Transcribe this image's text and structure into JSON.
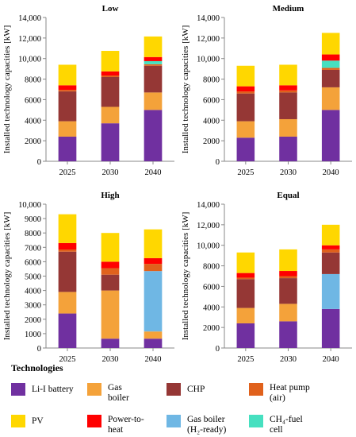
{
  "figure": {
    "ylabel": "Installed technology capacities [kW]",
    "categories": [
      "2025",
      "2030",
      "2040"
    ]
  },
  "legend": {
    "title": "Technologies",
    "items": [
      {
        "label": "Li-I battery",
        "color": "#7030A0"
      },
      {
        "label": "Gas\nboiler",
        "color": "#F4A23A"
      },
      {
        "label": "CHP",
        "color": "#953735"
      },
      {
        "label": "Heat pump\n(air)",
        "color": "#E0611C"
      },
      {
        "label": "PV",
        "color": "#FFD700"
      },
      {
        "label": "Power-to-\nheat",
        "color": "#FF0000"
      },
      {
        "label": "Gas boiler\n(H₂-ready)",
        "color": "#6FB7E4"
      },
      {
        "label": "CH₄-fuel\ncell",
        "color": "#46E0C0"
      }
    ]
  },
  "chart_data": [
    {
      "type": "bar",
      "stacked": true,
      "title": "Low",
      "categories": [
        "2025",
        "2030",
        "2040"
      ],
      "ylim": [
        0,
        14000
      ],
      "yticks": [
        "0",
        "2000",
        "4000",
        "6000",
        "8000",
        "10,000",
        "12,000",
        "14,000"
      ],
      "series": [
        {
          "name": "Li-I battery",
          "values": [
            2400,
            3700,
            5000
          ]
        },
        {
          "name": "Gas boiler",
          "values": [
            1500,
            1600,
            1700
          ]
        },
        {
          "name": "Gas boiler (H₂-ready)",
          "values": [
            0,
            0,
            0
          ]
        },
        {
          "name": "CHP",
          "values": [
            2900,
            2900,
            2600
          ]
        },
        {
          "name": "Heat pump (air)",
          "values": [
            150,
            150,
            150
          ]
        },
        {
          "name": "CH₄-fuel cell",
          "values": [
            0,
            0,
            300
          ]
        },
        {
          "name": "Power-to-heat",
          "values": [
            450,
            400,
            400
          ]
        },
        {
          "name": "PV",
          "values": [
            2000,
            2000,
            2000
          ]
        }
      ]
    },
    {
      "type": "bar",
      "stacked": true,
      "title": "Medium",
      "categories": [
        "2025",
        "2030",
        "2040"
      ],
      "ylim": [
        0,
        14000
      ],
      "yticks": [
        "0",
        "2000",
        "4000",
        "6000",
        "8000",
        "10,000",
        "12,000",
        "14,000"
      ],
      "series": [
        {
          "name": "Li-I battery",
          "values": [
            2300,
            2400,
            5000
          ]
        },
        {
          "name": "Gas boiler",
          "values": [
            1600,
            1700,
            2200
          ]
        },
        {
          "name": "Gas boiler (H₂-ready)",
          "values": [
            0,
            0,
            0
          ]
        },
        {
          "name": "CHP",
          "values": [
            2700,
            2600,
            1700
          ]
        },
        {
          "name": "Heat pump (air)",
          "values": [
            200,
            200,
            200
          ]
        },
        {
          "name": "CH₄-fuel cell",
          "values": [
            0,
            0,
            700
          ]
        },
        {
          "name": "Power-to-heat",
          "values": [
            500,
            500,
            600
          ]
        },
        {
          "name": "PV",
          "values": [
            2000,
            2000,
            2100
          ]
        }
      ]
    },
    {
      "type": "bar",
      "stacked": true,
      "title": "High",
      "categories": [
        "2025",
        "2030",
        "2040"
      ],
      "ylim": [
        0,
        10000
      ],
      "yticks": [
        "0",
        "1000",
        "2000",
        "3000",
        "4000",
        "5000",
        "6000",
        "7000",
        "8000",
        "9000",
        "10,000"
      ],
      "series": [
        {
          "name": "Li-I battery",
          "values": [
            2400,
            650,
            650
          ]
        },
        {
          "name": "Gas boiler",
          "values": [
            1500,
            3350,
            500
          ]
        },
        {
          "name": "Gas boiler (H₂-ready)",
          "values": [
            0,
            0,
            4200
          ]
        },
        {
          "name": "CHP",
          "values": [
            2800,
            1100,
            0
          ]
        },
        {
          "name": "Heat pump (air)",
          "values": [
            150,
            450,
            500
          ]
        },
        {
          "name": "CH₄-fuel cell",
          "values": [
            0,
            0,
            0
          ]
        },
        {
          "name": "Power-to-heat",
          "values": [
            450,
            450,
            400
          ]
        },
        {
          "name": "PV",
          "values": [
            2000,
            2000,
            2000
          ]
        }
      ]
    },
    {
      "type": "bar",
      "stacked": true,
      "title": "Equal",
      "categories": [
        "2025",
        "2030",
        "2040"
      ],
      "ylim": [
        0,
        14000
      ],
      "yticks": [
        "0",
        "2000",
        "4000",
        "6000",
        "8000",
        "10,000",
        "12,000",
        "14,000"
      ],
      "series": [
        {
          "name": "Li-I battery",
          "values": [
            2400,
            2600,
            3800
          ]
        },
        {
          "name": "Gas boiler",
          "values": [
            1500,
            1700,
            0
          ]
        },
        {
          "name": "Gas boiler (H₂-ready)",
          "values": [
            0,
            0,
            3400
          ]
        },
        {
          "name": "CHP",
          "values": [
            2800,
            2500,
            2100
          ]
        },
        {
          "name": "Heat pump (air)",
          "values": [
            150,
            200,
            300
          ]
        },
        {
          "name": "CH₄-fuel cell",
          "values": [
            0,
            0,
            0
          ]
        },
        {
          "name": "Power-to-heat",
          "values": [
            450,
            500,
            400
          ]
        },
        {
          "name": "PV",
          "values": [
            2000,
            2100,
            2000
          ]
        }
      ]
    }
  ]
}
